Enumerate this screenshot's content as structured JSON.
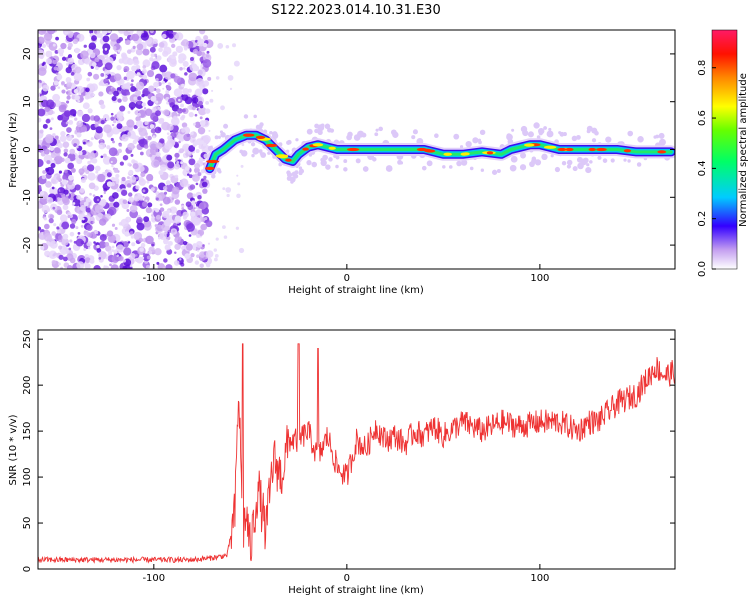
{
  "title": "S122.2023.014.10.31.E30",
  "chart_data": [
    {
      "type": "heatmap",
      "xlabel": "Height of straight line (km)",
      "ylabel": "Frequency (Hz)",
      "xlim": [
        -160,
        170
      ],
      "ylim": [
        -25,
        25
      ],
      "x_ticks": [
        -100,
        0,
        100
      ],
      "y_ticks": [
        -20,
        -10,
        0,
        10,
        20
      ],
      "grid": false,
      "colorbar": {
        "label": "Normalized spectral amplitude",
        "range": [
          0,
          0.95
        ],
        "ticks": [
          0.0,
          0.2,
          0.4,
          0.6,
          0.8
        ]
      },
      "noise_region_x": [
        -160,
        -71
      ],
      "ridge": {
        "x": [
          -71,
          -68,
          -64,
          -58,
          -52,
          -47,
          -42,
          -37,
          -32,
          -28,
          -25,
          -20,
          -15,
          -10,
          -5,
          0,
          10,
          20,
          30,
          40,
          50,
          60,
          70,
          80,
          85,
          90,
          95,
          100,
          105,
          110,
          115,
          120,
          125,
          130,
          140,
          150,
          160,
          168
        ],
        "y": [
          -4,
          -1,
          0,
          2,
          3,
          3,
          2,
          0,
          -2,
          -2.5,
          -1,
          0.5,
          1,
          0.5,
          0,
          0,
          0,
          0,
          0,
          0,
          -1,
          -1,
          -0.5,
          -1,
          0,
          0.5,
          1,
          1,
          0.5,
          0,
          0,
          0,
          0,
          0,
          0,
          -0.5,
          -0.5,
          -0.5
        ]
      }
    },
    {
      "type": "line",
      "xlabel": "Height of straight line (km)",
      "ylabel": "SNR (10 * v/v)",
      "xlim": [
        -160,
        170
      ],
      "ylim": [
        0,
        260
      ],
      "x_ticks": [
        -100,
        0,
        100
      ],
      "y_ticks": [
        0,
        50,
        100,
        150,
        200,
        250
      ],
      "grid": false,
      "series_color": "#ee3333",
      "series": [
        {
          "x": [
            -160,
            -140,
            -120,
            -100,
            -80,
            -70,
            -62,
            -58,
            -56,
            -54,
            -52,
            -50,
            -46,
            -42,
            -38,
            -34,
            -30,
            -25,
            -20,
            -15,
            -10,
            -5,
            0,
            5,
            10,
            15,
            20,
            25,
            30,
            35,
            40,
            45,
            50,
            60,
            70,
            80,
            90,
            100,
            110,
            120,
            125,
            130,
            140,
            150,
            160,
            165,
            170
          ],
          "y": [
            10,
            10,
            10,
            10,
            10,
            12,
            15,
            60,
            200,
            40,
            60,
            20,
            90,
            40,
            120,
            100,
            140,
            140,
            150,
            120,
            145,
            110,
            100,
            140,
            130,
            155,
            140,
            145,
            135,
            150,
            145,
            155,
            145,
            160,
            150,
            160,
            155,
            160,
            160,
            150,
            160,
            160,
            180,
            190,
            220,
            210,
            215
          ]
        }
      ],
      "peaks": [
        [
          -54,
          245
        ],
        [
          -25,
          245
        ],
        [
          -15,
          240
        ]
      ]
    }
  ]
}
